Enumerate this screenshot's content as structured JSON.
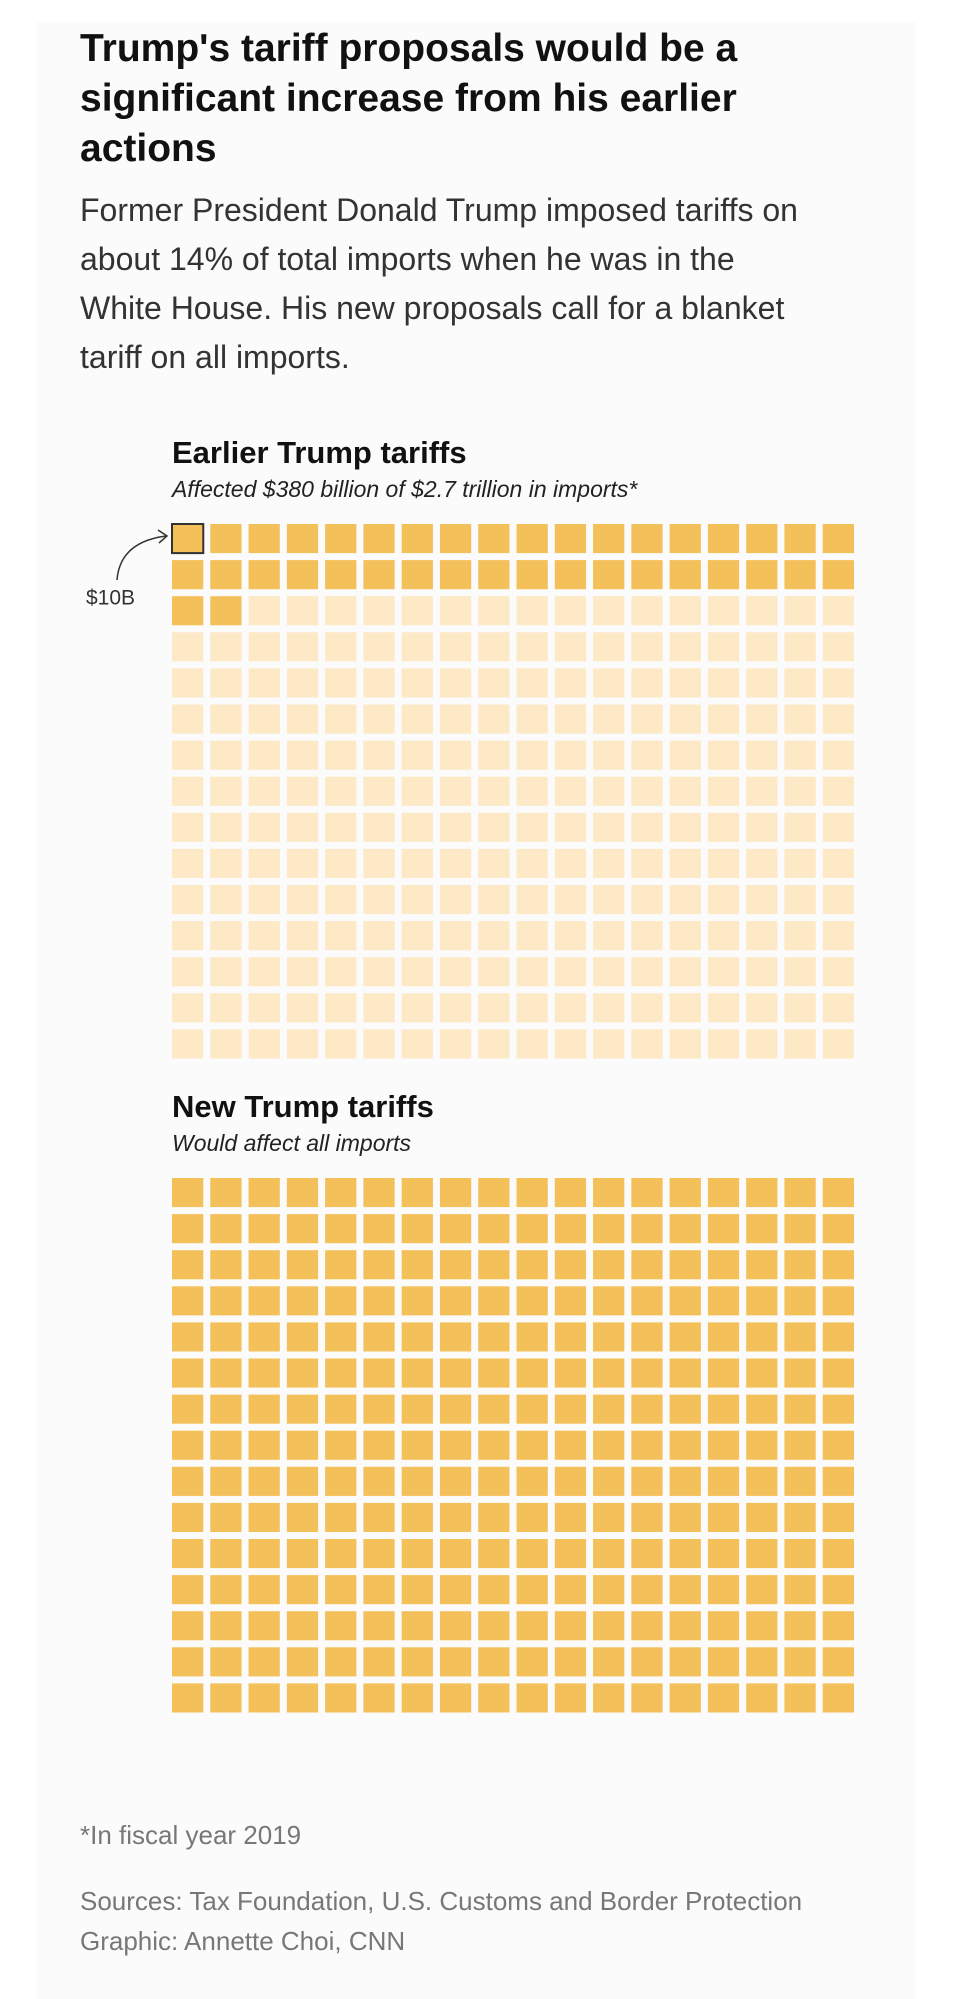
{
  "header": {
    "title": "Trump's tariff proposals would be a significant increase from his earlier actions",
    "subtitle": "Former President Donald Trump imposed tariffs on about 14% of total imports when he was in the White House. His new proposals call for a blanket tariff on all imports."
  },
  "chart_data": [
    {
      "type": "waffle",
      "title": "Earlier Trump tariffs",
      "subtitle": "Affected $380 billion of $2.7 trillion in imports*",
      "affected": 380,
      "total": 2700,
      "unit": {
        "value": 10,
        "label": "$10B"
      },
      "columns": 18,
      "color": "#f4c05a",
      "empty_color": "#fde9c6"
    },
    {
      "type": "waffle",
      "title": "New Trump tariffs",
      "subtitle": "Would affect all imports",
      "affected": 2700,
      "total": 2700,
      "unit": {
        "value": 10
      },
      "columns": 18,
      "color": "#f4c05a",
      "empty_color": "#fde9c6"
    }
  ],
  "footer": {
    "note": "*In fiscal year 2019",
    "sources": "Sources: Tax Foundation, U.S. Customs and Border Protection",
    "credit": "Graphic: Annette Choi, CNN"
  }
}
